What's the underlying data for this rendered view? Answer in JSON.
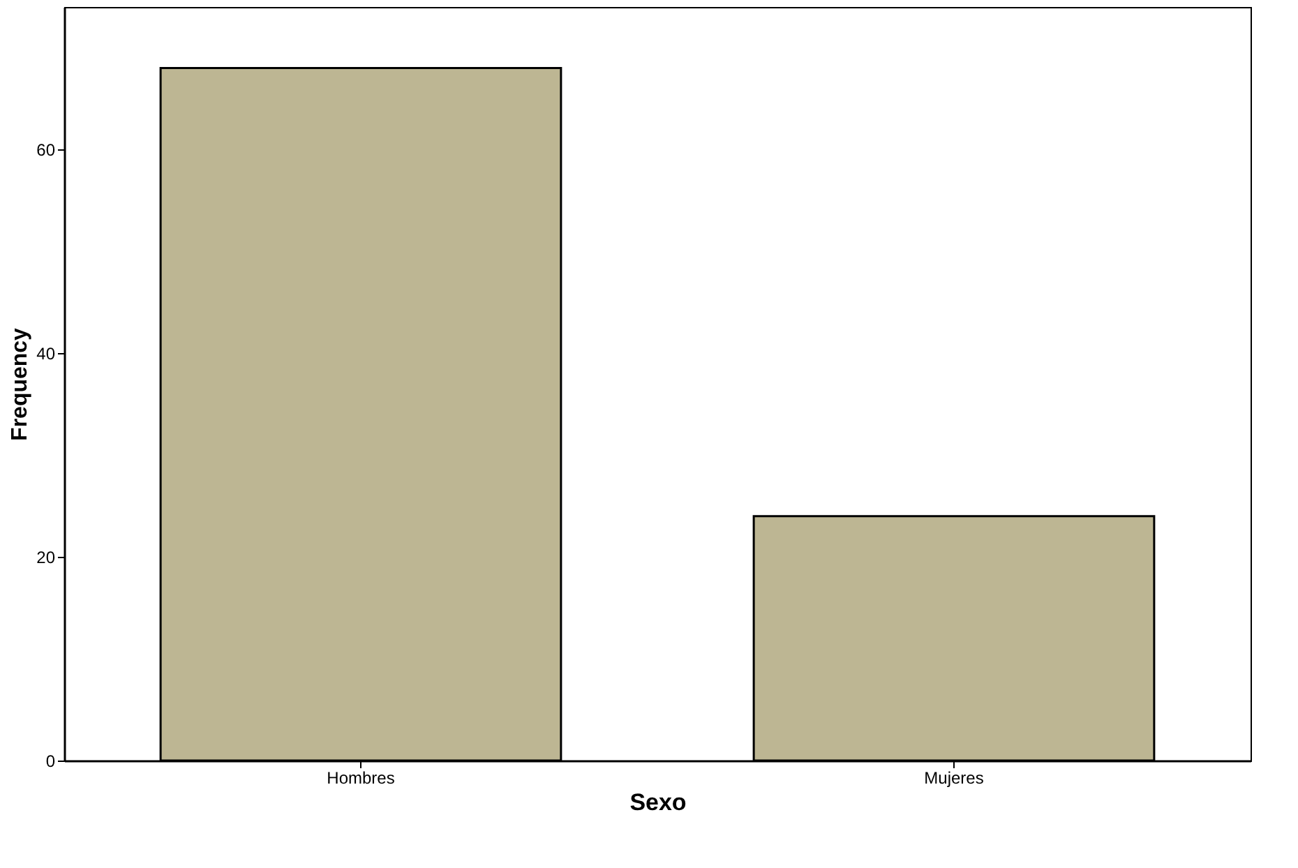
{
  "chart_data": {
    "type": "bar",
    "xlabel": "Sexo",
    "ylabel": "Frequency",
    "categories": [
      "Hombres",
      "Mujeres"
    ],
    "values": [
      68,
      24
    ],
    "color": "#bdb693",
    "ylim": [
      0,
      74
    ],
    "yticks": [
      0,
      20,
      40,
      60
    ],
    "grid": false
  }
}
